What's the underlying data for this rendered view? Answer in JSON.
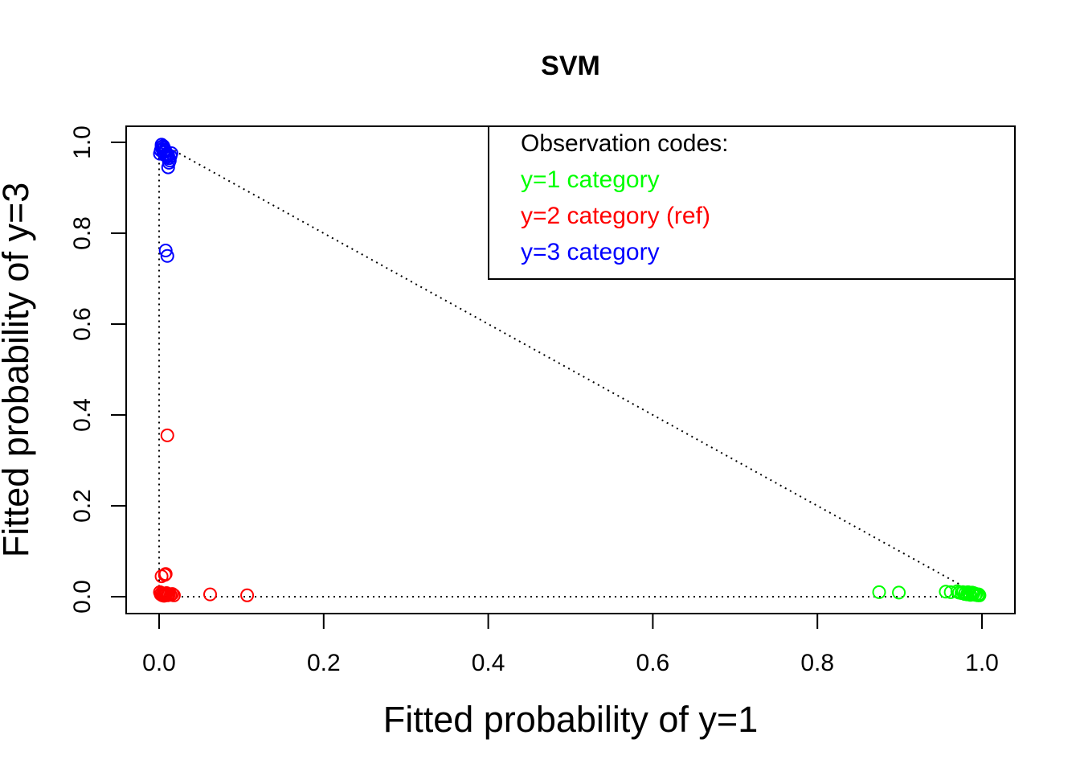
{
  "chart_data": {
    "type": "scatter",
    "title": "SVM",
    "xlabel": "Fitted  probability of  y=1",
    "ylabel": "Fitted probability of y=3",
    "xlim": [
      0,
      1
    ],
    "ylim": [
      0,
      1
    ],
    "x_ticks": [
      "0.0",
      "0.2",
      "0.4",
      "0.6",
      "0.8",
      "1.0"
    ],
    "y_ticks": [
      "0.0",
      "0.2",
      "0.4",
      "0.6",
      "0.8",
      "1.0"
    ],
    "marker": "open-circle",
    "grid": false,
    "legend": {
      "placement": "top-right",
      "title": "Observation codes:",
      "entries": [
        "y=1 category",
        "y=2 category (ref)",
        "y=3 category"
      ]
    },
    "reference_triangle": [
      [
        0,
        0
      ],
      [
        1,
        0
      ],
      [
        0,
        1
      ]
    ],
    "series": [
      {
        "name": "y=1 category",
        "color": "#00ff00",
        "points": [
          [
            0.875,
            0.01
          ],
          [
            0.899,
            0.009
          ],
          [
            0.956,
            0.011
          ],
          [
            0.962,
            0.01
          ],
          [
            0.97,
            0.012
          ],
          [
            0.972,
            0.009
          ],
          [
            0.975,
            0.008
          ],
          [
            0.977,
            0.01
          ],
          [
            0.979,
            0.006
          ],
          [
            0.98,
            0.009
          ],
          [
            0.982,
            0.005
          ],
          [
            0.983,
            0.01
          ],
          [
            0.985,
            0.007
          ],
          [
            0.986,
            0.004
          ],
          [
            0.988,
            0.009
          ],
          [
            0.989,
            0.005
          ],
          [
            0.99,
            0.008
          ],
          [
            0.992,
            0.004
          ],
          [
            0.993,
            0.006
          ],
          [
            0.995,
            0.003
          ],
          [
            0.996,
            0.005
          ],
          [
            0.997,
            0.003
          ]
        ]
      },
      {
        "name": "y=2 category (ref)",
        "color": "#ff0000",
        "points": [
          [
            0.01,
            0.355
          ],
          [
            0.008,
            0.05
          ],
          [
            0.003,
            0.045
          ],
          [
            0.007,
            0.048
          ],
          [
            0.001,
            0.01
          ],
          [
            0.002,
            0.005
          ],
          [
            0.003,
            0.008
          ],
          [
            0.004,
            0.003
          ],
          [
            0.005,
            0.007
          ],
          [
            0.006,
            0.002
          ],
          [
            0.007,
            0.006
          ],
          [
            0.008,
            0.004
          ],
          [
            0.009,
            0.008
          ],
          [
            0.01,
            0.003
          ],
          [
            0.011,
            0.006
          ],
          [
            0.012,
            0.005
          ],
          [
            0.014,
            0.004
          ],
          [
            0.016,
            0.006
          ],
          [
            0.018,
            0.003
          ],
          [
            0.062,
            0.005
          ],
          [
            0.107,
            0.003
          ]
        ]
      },
      {
        "name": "y=3 category",
        "color": "#0000ff",
        "points": [
          [
            0.008,
            0.762
          ],
          [
            0.01,
            0.75
          ],
          [
            0.011,
            0.945
          ],
          [
            0.012,
            0.955
          ],
          [
            0.001,
            0.975
          ],
          [
            0.002,
            0.982
          ],
          [
            0.003,
            0.99
          ],
          [
            0.003,
            0.995
          ],
          [
            0.004,
            0.985
          ],
          [
            0.005,
            0.992
          ],
          [
            0.005,
            0.978
          ],
          [
            0.006,
            0.988
          ],
          [
            0.007,
            0.983
          ],
          [
            0.007,
            0.972
          ],
          [
            0.008,
            0.98
          ],
          [
            0.009,
            0.975
          ],
          [
            0.01,
            0.968
          ],
          [
            0.011,
            0.972
          ],
          [
            0.012,
            0.965
          ],
          [
            0.013,
            0.96
          ],
          [
            0.014,
            0.97
          ],
          [
            0.015,
            0.976
          ]
        ]
      }
    ]
  }
}
